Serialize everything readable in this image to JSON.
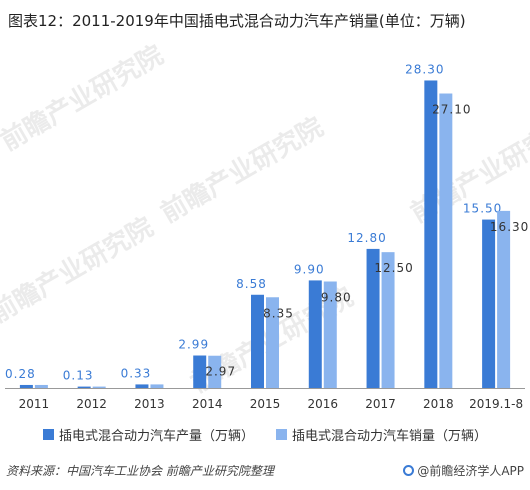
{
  "page": {
    "title": "图表12：2011-2019年中国插电式混合动力汽车产销量(单位：万辆)",
    "source": "资料来源：中国汽车工业协会 前瞻产业研究院整理",
    "credit": "@前瞻经济学人APP",
    "watermark": "前瞻产业研究院"
  },
  "colors": {
    "production": "#3a7bd5",
    "sales": "#8ab4ee",
    "label": "#3a7bd5",
    "label_inside": "#333333",
    "axis": "#999999"
  },
  "chart_data": {
    "type": "bar",
    "title": "图表12：2011-2019年中国插电式混合动力汽车产销量(单位：万辆)",
    "categories": [
      "2011",
      "2012",
      "2013",
      "2014",
      "2015",
      "2016",
      "2017",
      "2018",
      "2019.1-8"
    ],
    "series": [
      {
        "name": "插电式混合动力汽车产量（万辆）",
        "values": [
          0.28,
          0.13,
          0.33,
          2.99,
          8.58,
          9.9,
          12.8,
          28.3,
          15.5
        ],
        "labels": [
          "0.28",
          "0.13",
          "0.33",
          "2.99",
          "8.58",
          "9.90",
          "12.80",
          "28.30",
          "15.50"
        ]
      },
      {
        "name": "插电式混合动力汽车销量（万辆）",
        "values": [
          0.28,
          0.13,
          0.33,
          2.97,
          8.35,
          9.8,
          12.5,
          27.1,
          16.3
        ],
        "labels": [
          "",
          "",
          "",
          "2.97",
          "8.35",
          "9.80",
          "12.50",
          "27.10",
          "16.30"
        ]
      }
    ],
    "ylim": [
      0,
      30
    ],
    "grid": false,
    "legend": "bottom",
    "xlabel": "",
    "ylabel": ""
  }
}
